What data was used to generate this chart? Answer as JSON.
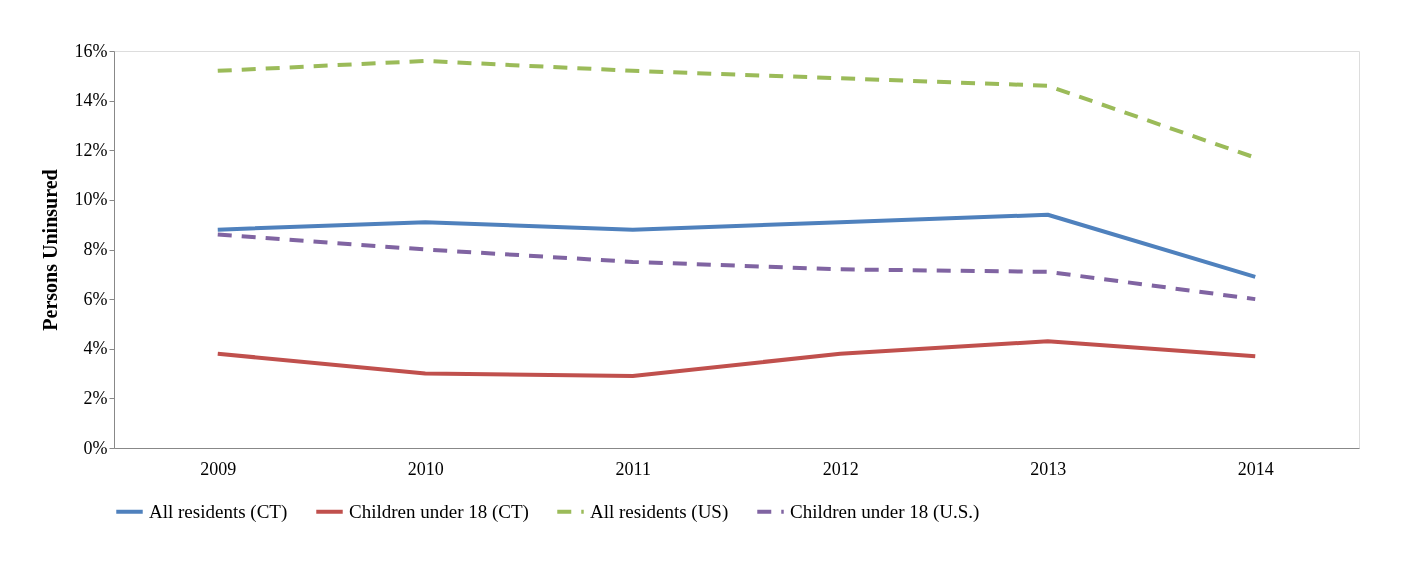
{
  "chart_data": {
    "type": "line",
    "ylabel": "Persons Uninsured",
    "categories": [
      "2009",
      "2010",
      "2011",
      "2012",
      "2013",
      "2014"
    ],
    "series": [
      {
        "name": "All residents (CT)",
        "color": "#4f81bd",
        "line_style": "solid",
        "values": [
          8.8,
          9.1,
          8.8,
          9.1,
          9.4,
          6.9
        ]
      },
      {
        "name": "Children under 18 (CT)",
        "color": "#c0504d",
        "line_style": "solid",
        "values": [
          3.8,
          3.0,
          2.9,
          3.8,
          4.3,
          3.7
        ]
      },
      {
        "name": "All residents (US)",
        "color": "#9bbb59",
        "line_style": "dashed",
        "values": [
          15.2,
          15.6,
          15.2,
          14.9,
          14.6,
          11.7
        ]
      },
      {
        "name": "Children under 18 (U.S.)",
        "color": "#8064a2",
        "line_style": "dashed",
        "values": [
          8.6,
          8.0,
          7.5,
          7.2,
          7.1,
          6.0
        ]
      }
    ],
    "ylim": [
      0,
      16
    ],
    "yticks": [
      {
        "value": 0,
        "label": "0%"
      },
      {
        "value": 2,
        "label": "2%"
      },
      {
        "value": 4,
        "label": "4%"
      },
      {
        "value": 6,
        "label": "6%"
      },
      {
        "value": 8,
        "label": "8%"
      },
      {
        "value": 10,
        "label": "10%"
      },
      {
        "value": 12,
        "label": "12%"
      },
      {
        "value": 14,
        "label": "14%"
      },
      {
        "value": 16,
        "label": "16%"
      }
    ],
    "grid": false,
    "legend": "bottom",
    "marker": "none"
  }
}
